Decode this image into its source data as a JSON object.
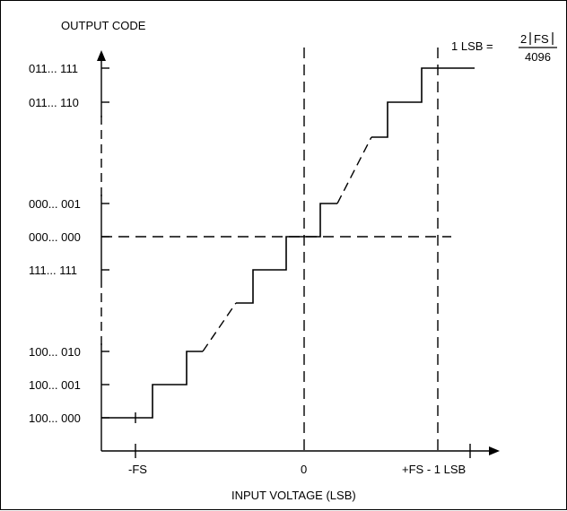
{
  "diagram": {
    "y_axis_title": "OUTPUT CODE",
    "x_axis_title": "INPUT VOLTAGE (LSB)",
    "y_tick_labels": [
      "011... 111",
      "011... 110",
      "000... 001",
      "000... 000",
      "111... 111",
      "100... 010",
      "100... 001",
      "100... 000"
    ],
    "x_tick_labels": [
      "-FS",
      "0",
      "+FS - 1 LSB"
    ],
    "formula": {
      "lhs": "1 LSB =",
      "numerator_left": "2",
      "numerator_var": "FS",
      "denominator": "4096"
    }
  }
}
